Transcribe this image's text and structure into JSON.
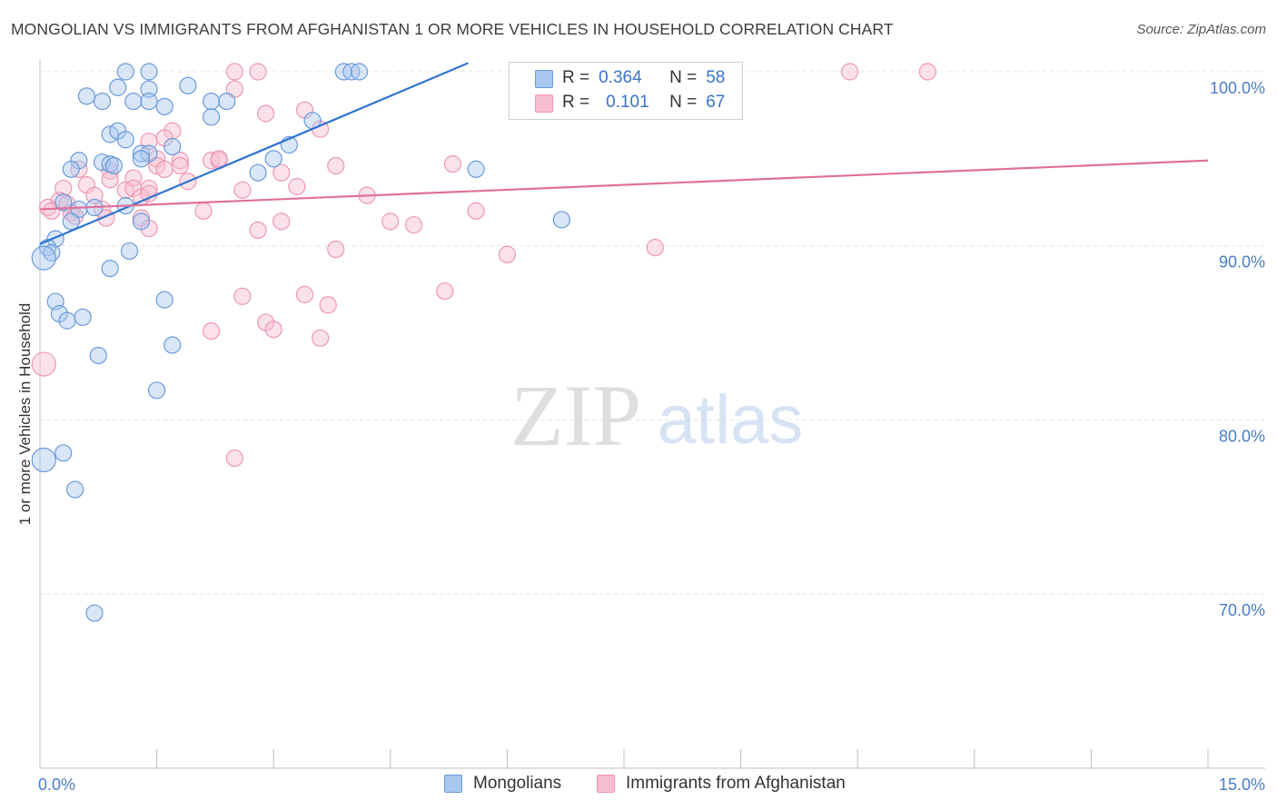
{
  "title": "MONGOLIAN VS IMMIGRANTS FROM AFGHANISTAN 1 OR MORE VEHICLES IN HOUSEHOLD CORRELATION CHART",
  "source": "Source: ZipAtlas.com",
  "watermark": {
    "zip": "ZIP",
    "atlas": "atlas"
  },
  "legend": {
    "r_label": "R =",
    "n_label": "N =",
    "series1": {
      "r": "0.364",
      "n": "58"
    },
    "series2": {
      "r": "0.101",
      "n": "67"
    }
  },
  "bottom_legend": {
    "series1": "Mongolians",
    "series2": "Immigrants from Afghanistan"
  },
  "colors": {
    "blue_fill": "#a9c8f0",
    "blue_stroke": "#6a9ad8",
    "blue_line": "#2f74d0",
    "pink_fill": "#f7bed0",
    "pink_stroke": "#ec96b2",
    "pink_line": "#e0709a",
    "tick_text": "#4a7cc7",
    "grid": "#e3e3e3"
  },
  "chart_data": {
    "type": "scatter",
    "title": "MONGOLIAN VS IMMIGRANTS FROM AFGHANISTAN 1 OR MORE VEHICLES IN HOUSEHOLD CORRELATION CHART",
    "xlabel": "",
    "ylabel": "1 or more Vehicles in Household",
    "xlim": [
      0,
      15
    ],
    "ylim": [
      60,
      101.5
    ],
    "x_tick_labels": [
      "0.0%",
      "15.0%"
    ],
    "y_ticks": [
      70,
      80,
      90,
      100
    ],
    "y_tick_labels": [
      "70.0%",
      "80.0%",
      "90.0%",
      "100.0%"
    ],
    "series": [
      {
        "name": "Mongolians",
        "r": 0.364,
        "n": 58,
        "trend": {
          "x": [
            0,
            5.5
          ],
          "y": [
            90.1,
            100.5
          ]
        },
        "points": [
          [
            1.1,
            100.0
          ],
          [
            1.4,
            100.0
          ],
          [
            3.9,
            100.0
          ],
          [
            4.0,
            100.0
          ],
          [
            4.1,
            100.0
          ],
          [
            0.6,
            98.6
          ],
          [
            1.0,
            99.1
          ],
          [
            1.4,
            99.0
          ],
          [
            1.9,
            99.2
          ],
          [
            0.8,
            98.3
          ],
          [
            1.2,
            98.3
          ],
          [
            1.4,
            98.3
          ],
          [
            1.6,
            98.0
          ],
          [
            2.2,
            98.3
          ],
          [
            2.4,
            98.3
          ],
          [
            2.2,
            97.4
          ],
          [
            3.5,
            97.2
          ],
          [
            0.9,
            96.4
          ],
          [
            1.0,
            96.6
          ],
          [
            1.1,
            96.1
          ],
          [
            1.7,
            95.7
          ],
          [
            1.3,
            95.3
          ],
          [
            1.4,
            95.3
          ],
          [
            3.2,
            95.8
          ],
          [
            0.5,
            94.9
          ],
          [
            0.8,
            94.8
          ],
          [
            0.9,
            94.7
          ],
          [
            0.95,
            94.6
          ],
          [
            1.3,
            95.0
          ],
          [
            0.4,
            94.4
          ],
          [
            3.0,
            95.0
          ],
          [
            2.8,
            94.2
          ],
          [
            5.6,
            94.4
          ],
          [
            0.3,
            92.5
          ],
          [
            0.5,
            92.1
          ],
          [
            0.7,
            92.2
          ],
          [
            1.1,
            92.3
          ],
          [
            0.4,
            91.4
          ],
          [
            1.3,
            91.4
          ],
          [
            6.7,
            91.5
          ],
          [
            0.2,
            90.4
          ],
          [
            0.1,
            89.9
          ],
          [
            0.15,
            89.6
          ],
          [
            0.05,
            89.3
          ],
          [
            1.15,
            89.7
          ],
          [
            0.9,
            88.7
          ],
          [
            1.6,
            86.9
          ],
          [
            0.2,
            86.8
          ],
          [
            0.25,
            86.1
          ],
          [
            0.55,
            85.9
          ],
          [
            0.35,
            85.7
          ],
          [
            1.7,
            84.3
          ],
          [
            0.75,
            83.7
          ],
          [
            1.5,
            81.7
          ],
          [
            0.3,
            78.1
          ],
          [
            0.05,
            77.7
          ],
          [
            0.45,
            76.0
          ],
          [
            0.7,
            68.9
          ]
        ],
        "sizes_note": "a few markers at the left edge are drawn larger"
      },
      {
        "name": "Immigrants from Afghanistan",
        "r": 0.101,
        "n": 67,
        "trend": {
          "x": [
            0,
            15
          ],
          "y": [
            92.1,
            94.9
          ]
        },
        "points": [
          [
            2.5,
            100.0
          ],
          [
            2.8,
            100.0
          ],
          [
            10.4,
            100.0
          ],
          [
            11.4,
            100.0
          ],
          [
            2.5,
            99.0
          ],
          [
            3.4,
            97.8
          ],
          [
            2.9,
            97.6
          ],
          [
            3.6,
            96.7
          ],
          [
            1.7,
            96.6
          ],
          [
            1.4,
            96.0
          ],
          [
            1.5,
            95.0
          ],
          [
            1.8,
            94.9
          ],
          [
            2.2,
            94.9
          ],
          [
            2.3,
            94.9
          ],
          [
            1.5,
            94.6
          ],
          [
            1.8,
            94.6
          ],
          [
            1.6,
            94.4
          ],
          [
            3.8,
            94.6
          ],
          [
            3.1,
            94.2
          ],
          [
            5.3,
            94.7
          ],
          [
            0.5,
            94.4
          ],
          [
            0.9,
            94.3
          ],
          [
            1.2,
            93.9
          ],
          [
            0.9,
            93.8
          ],
          [
            1.9,
            93.7
          ],
          [
            0.6,
            93.5
          ],
          [
            1.1,
            93.2
          ],
          [
            1.2,
            93.3
          ],
          [
            1.4,
            93.3
          ],
          [
            0.3,
            93.3
          ],
          [
            3.3,
            93.4
          ],
          [
            2.6,
            93.2
          ],
          [
            0.7,
            92.9
          ],
          [
            1.3,
            92.8
          ],
          [
            1.4,
            93.0
          ],
          [
            4.2,
            92.9
          ],
          [
            0.25,
            92.6
          ],
          [
            0.35,
            92.4
          ],
          [
            0.1,
            92.2
          ],
          [
            0.15,
            92.0
          ],
          [
            0.4,
            91.9
          ],
          [
            0.8,
            92.1
          ],
          [
            2.1,
            92.0
          ],
          [
            5.6,
            92.0
          ],
          [
            0.45,
            91.7
          ],
          [
            0.85,
            91.6
          ],
          [
            1.3,
            91.6
          ],
          [
            3.1,
            91.4
          ],
          [
            4.5,
            91.4
          ],
          [
            4.8,
            91.2
          ],
          [
            1.4,
            91.0
          ],
          [
            2.8,
            90.9
          ],
          [
            3.8,
            89.8
          ],
          [
            6.0,
            89.5
          ],
          [
            7.9,
            89.9
          ],
          [
            5.2,
            87.4
          ],
          [
            2.6,
            87.1
          ],
          [
            3.4,
            87.2
          ],
          [
            3.7,
            86.6
          ],
          [
            2.9,
            85.6
          ],
          [
            3.0,
            85.2
          ],
          [
            2.2,
            85.1
          ],
          [
            3.6,
            84.7
          ],
          [
            0.05,
            83.2
          ],
          [
            2.5,
            77.8
          ],
          [
            1.6,
            96.2
          ],
          [
            2.3,
            95.0
          ]
        ]
      }
    ]
  }
}
